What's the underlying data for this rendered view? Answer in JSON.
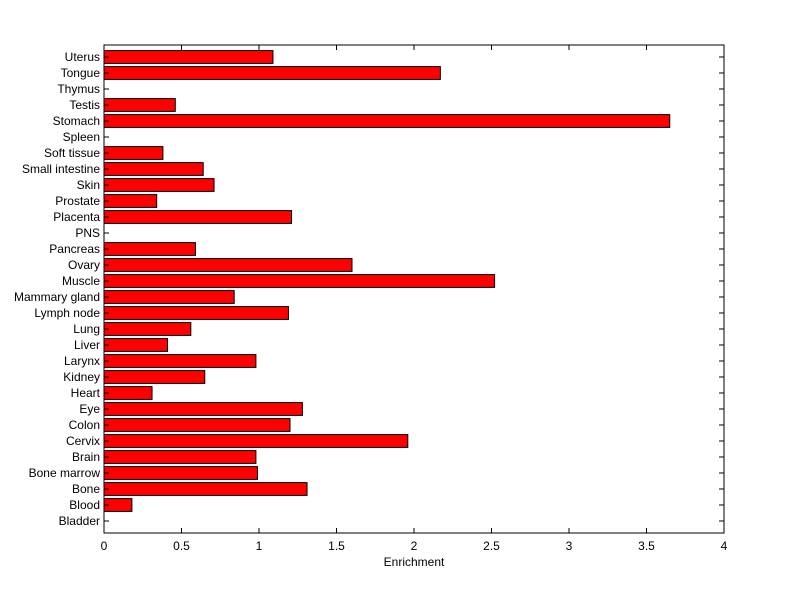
{
  "chart_data": {
    "type": "bar",
    "orientation": "horizontal",
    "title": "",
    "xlabel": "Enrichment",
    "ylabel": "",
    "xlim": [
      0,
      4
    ],
    "xticks": [
      "0",
      "0.5",
      "1",
      "1.5",
      "2",
      "2.5",
      "3",
      "3.5",
      "4"
    ],
    "xtick_values": [
      0,
      0.5,
      1,
      1.5,
      2,
      2.5,
      3,
      3.5,
      4
    ],
    "grid": false,
    "bar_color": "#ff0000",
    "edge_color": "#000000",
    "categories": [
      "Bladder",
      "Blood",
      "Bone",
      "Bone marrow",
      "Brain",
      "Cervix",
      "Colon",
      "Eye",
      "Heart",
      "Kidney",
      "Larynx",
      "Liver",
      "Lung",
      "Lymph node",
      "Mammary gland",
      "Muscle",
      "Ovary",
      "Pancreas",
      "PNS",
      "Placenta",
      "Prostate",
      "Skin",
      "Small intestine",
      "Soft tissue",
      "Spleen",
      "Stomach",
      "Testis",
      "Thymus",
      "Tongue",
      "Uterus"
    ],
    "values": [
      0,
      0.18,
      1.31,
      0.99,
      0.98,
      1.96,
      1.2,
      1.28,
      0.31,
      0.65,
      0.98,
      0.41,
      0.56,
      1.19,
      0.84,
      2.52,
      1.6,
      0.59,
      0,
      1.21,
      0.34,
      0.71,
      0.64,
      0.38,
      0,
      3.65,
      0.46,
      0,
      2.17,
      1.09
    ]
  }
}
